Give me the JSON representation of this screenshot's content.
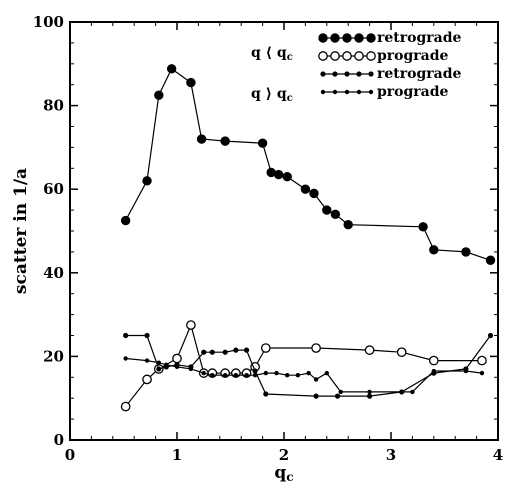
{
  "chart_data": {
    "type": "line",
    "xlabel": "q",
    "xlabel_sub": "c",
    "ylabel": "scatter in 1/a",
    "xlim": [
      0,
      4
    ],
    "ylim": [
      0,
      100
    ],
    "x_ticks": [
      0,
      1,
      2,
      3,
      4
    ],
    "y_ticks": [
      0,
      20,
      40,
      60,
      80,
      100
    ],
    "grid": false,
    "legend_position": "top-right",
    "legend_groups": [
      {
        "label": "q ⟨ q",
        "sub": "c"
      },
      {
        "label": "q ⟩ q",
        "sub": "c"
      }
    ],
    "series": [
      {
        "name": "retrograde",
        "group": 0,
        "marker": "filled-large",
        "x": [
          0.52,
          0.72,
          0.83,
          0.95,
          1.13,
          1.23,
          1.45,
          1.8,
          1.88,
          1.95,
          2.03,
          2.2,
          2.28,
          2.4,
          2.48,
          2.6,
          3.3,
          3.4,
          3.7,
          3.93
        ],
        "values": [
          52.5,
          62,
          82.5,
          88.8,
          85.5,
          72,
          71.5,
          71,
          64,
          63.5,
          63,
          60,
          59,
          55,
          54,
          51.5,
          51,
          45.5,
          45,
          43
        ]
      },
      {
        "name": "prograde",
        "group": 0,
        "marker": "open-large",
        "x": [
          0.52,
          0.72,
          0.83,
          1.0,
          1.13,
          1.25,
          1.33,
          1.45,
          1.55,
          1.65,
          1.73,
          1.83,
          2.3,
          2.8,
          3.1,
          3.4,
          3.85
        ],
        "values": [
          8,
          14.5,
          17,
          19.5,
          27.5,
          16,
          16,
          16,
          16,
          16,
          17.5,
          22,
          22,
          21.5,
          21,
          19,
          19
        ]
      },
      {
        "name": "retrograde",
        "group": 1,
        "marker": "filled-small",
        "x": [
          0.52,
          0.72,
          0.83,
          0.9,
          1.0,
          1.13,
          1.25,
          1.33,
          1.45,
          1.55,
          1.65,
          1.73,
          1.83,
          2.3,
          2.5,
          2.8,
          3.1,
          3.4,
          3.7,
          3.93
        ],
        "values": [
          25,
          25,
          17,
          17.5,
          18,
          17.5,
          21,
          21,
          21,
          21.5,
          21.5,
          16.5,
          11,
          10.5,
          10.5,
          10.5,
          11.5,
          16,
          17,
          25
        ]
      },
      {
        "name": "prograde",
        "group": 1,
        "marker": "dot-small",
        "x": [
          0.52,
          0.72,
          0.83,
          0.9,
          1.0,
          1.13,
          1.25,
          1.33,
          1.45,
          1.55,
          1.65,
          1.73,
          1.83,
          1.93,
          2.03,
          2.13,
          2.23,
          2.3,
          2.4,
          2.53,
          2.8,
          3.1,
          3.2,
          3.4,
          3.7,
          3.85
        ],
        "values": [
          19.5,
          19,
          18.5,
          18,
          17.5,
          17,
          16,
          15.5,
          15.5,
          15.5,
          15.5,
          15.5,
          16,
          16,
          15.5,
          15.5,
          16,
          14.5,
          16,
          11.5,
          11.5,
          11.5,
          11.5,
          16.5,
          16.5,
          16
        ]
      }
    ]
  }
}
